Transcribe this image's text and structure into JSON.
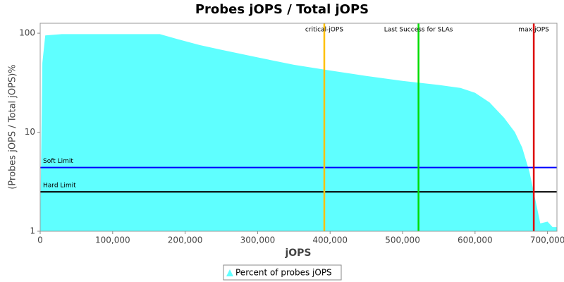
{
  "chart_data": {
    "type": "area",
    "title": "Probes jOPS / Total jOPS",
    "x_label": "jOPS",
    "y_label": "(Probes jOPS / Total jOPS)%",
    "x": [
      0,
      3000,
      7000,
      30000,
      165000,
      195000,
      220000,
      250000,
      300000,
      350000,
      400000,
      450000,
      500000,
      550000,
      580000,
      600000,
      620000,
      640000,
      655000,
      665000,
      675000,
      685000,
      690000,
      700000,
      707000,
      713000
    ],
    "series": [
      {
        "name": "Percent of probes jOPS",
        "color": "#5fffff",
        "values": [
          1,
          50,
          95,
          98,
          98,
          85,
          76,
          68,
          57,
          48,
          42,
          37,
          33,
          30,
          28,
          25,
          20,
          14,
          10,
          7,
          4,
          1.8,
          1.2,
          1.25,
          1.1,
          1.1
        ]
      }
    ],
    "vlines": [
      {
        "label": "critical-jOPS",
        "value": 392000,
        "color": "#ffc000"
      },
      {
        "label": "Last Success for SLAs",
        "value": 522000,
        "color": "#00dd00"
      },
      {
        "label": "max-jOPS",
        "value": 681000,
        "color": "#dd0000"
      }
    ],
    "hlines": [
      {
        "label": "Soft Limit",
        "value": 4.4,
        "color": "#0000ff"
      },
      {
        "label": "Hard Limit",
        "value": 2.5,
        "color": "#000000"
      }
    ],
    "xlim": [
      0,
      713000
    ],
    "ylim": [
      1,
      126
    ],
    "log_y": true,
    "xticks": [
      0,
      {
        "value": 100000,
        "label": "100,000"
      },
      {
        "value": 200000,
        "label": "200,000"
      },
      {
        "value": 300000,
        "label": "300,000"
      },
      {
        "value": 400000,
        "label": "400,000"
      },
      {
        "value": 500000,
        "label": "500,000"
      },
      {
        "value": 600000,
        "label": "600,000"
      },
      {
        "value": 700000,
        "label": "700,000"
      }
    ],
    "yticks": [
      1,
      10,
      100
    ],
    "legend": "bottom"
  }
}
